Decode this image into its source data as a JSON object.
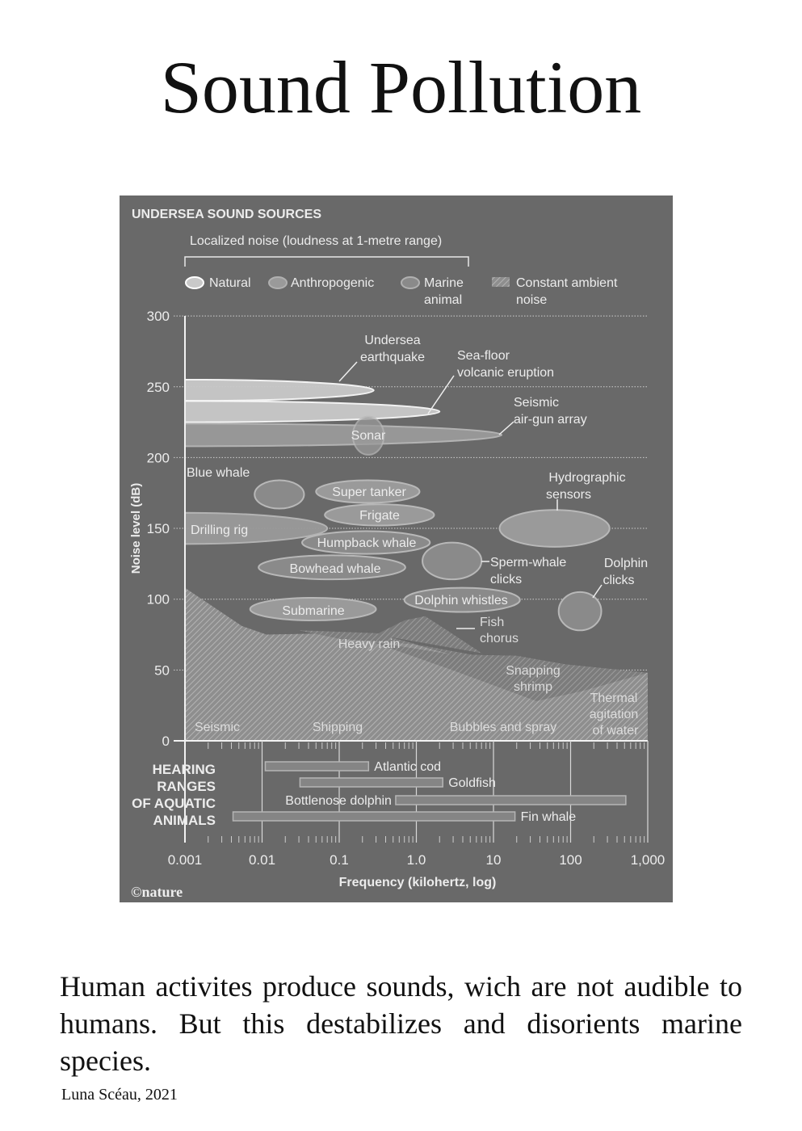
{
  "title": "Sound Pollution",
  "caption": "Human activites produce sounds, wich are not audible to humans. But this destabilizes and disorients marine species.",
  "credit": "Luna Scéau, 2021",
  "colors": {
    "panel": "#696969",
    "natural": "#c9c9c9",
    "anthropogenic": "#9a9a9a",
    "marine": "#8a8a8a",
    "text": "#ececec"
  },
  "chart_data": {
    "type": "area",
    "title": "UNDERSEA SOUND SOURCES",
    "subtitle": "Localized noise (loudness at 1-metre range)",
    "ylabel": "Noise level (dB)",
    "xlabel": "Frequency (kilohertz, log)",
    "xscale": "log",
    "xlim": [
      0.001,
      1000
    ],
    "ylim": [
      0,
      300
    ],
    "yticks": [
      "0",
      "50",
      "100",
      "150",
      "200",
      "250",
      "300"
    ],
    "xticks": [
      "0.001",
      "0.01",
      "0.1",
      "1.0",
      "10",
      "100",
      "1,000"
    ],
    "grid": "horizontal dotted",
    "legend": [
      {
        "label": "Natural",
        "kind": "natural"
      },
      {
        "label": "Anthropogenic",
        "kind": "anthropogenic"
      },
      {
        "label": "Marine animal",
        "kind": "marine"
      },
      {
        "label": "Constant ambient noise",
        "kind": "ambient"
      }
    ],
    "legend_lines": {
      "marine": [
        "Marine",
        "animal"
      ],
      "ambient": [
        "Constant ambient",
        "noise"
      ]
    },
    "sources": [
      {
        "label": [
          "Undersea",
          "earthquake"
        ],
        "kind": "natural",
        "freq": [
          0.001,
          0.28
        ],
        "db": [
          240,
          255
        ]
      },
      {
        "label": [
          "Sea-floor",
          "volcanic eruption"
        ],
        "kind": "natural",
        "freq": [
          0.001,
          2
        ],
        "db": [
          225,
          240
        ]
      },
      {
        "label": [
          "Seismic",
          "air-gun array"
        ],
        "kind": "anthropogenic",
        "freq": [
          0.001,
          13
        ],
        "db": [
          208,
          224
        ]
      },
      {
        "label": [
          "Sonar"
        ],
        "kind": "anthropogenic",
        "freq": [
          0.15,
          0.38
        ],
        "db": [
          202,
          229
        ]
      },
      {
        "label": [
          "Blue whale"
        ],
        "kind": "marine",
        "freq": [
          0.008,
          0.035
        ],
        "db": [
          164,
          184
        ]
      },
      {
        "label": [
          "Super tanker"
        ],
        "kind": "anthropogenic",
        "freq": [
          0.05,
          1.1
        ],
        "db": [
          168,
          184
        ]
      },
      {
        "label": [
          "Frigate"
        ],
        "kind": "anthropogenic",
        "freq": [
          0.065,
          1.7
        ],
        "db": [
          152,
          167
        ]
      },
      {
        "label": [
          "Drilling rig"
        ],
        "kind": "anthropogenic",
        "freq": [
          0.001,
          0.07
        ],
        "db": [
          139,
          161
        ]
      },
      {
        "label": [
          "Humpback whale"
        ],
        "kind": "marine",
        "freq": [
          0.033,
          1.5
        ],
        "db": [
          132,
          148
        ]
      },
      {
        "label": [
          "Hydrographic",
          "sensors"
        ],
        "kind": "anthropogenic",
        "freq": [
          12,
          320
        ],
        "db": [
          137,
          163
        ]
      },
      {
        "label": [
          "Bowhead whale"
        ],
        "kind": "marine",
        "freq": [
          0.009,
          0.72
        ],
        "db": [
          114,
          131
        ]
      },
      {
        "label": [
          "Sperm-whale",
          "clicks"
        ],
        "kind": "marine",
        "freq": [
          1.2,
          7
        ],
        "db": [
          114,
          140
        ]
      },
      {
        "label": [
          "Dolphin",
          "clicks"
        ],
        "kind": "marine",
        "freq": [
          70,
          250
        ],
        "db": [
          78,
          105
        ]
      },
      {
        "label": [
          "Dolphin whistles"
        ],
        "kind": "marine",
        "freq": [
          0.7,
          22
        ],
        "db": [
          91,
          108
        ]
      },
      {
        "label": [
          "Submarine"
        ],
        "kind": "anthropogenic",
        "freq": [
          0.007,
          0.3
        ],
        "db": [
          85,
          101
        ]
      }
    ],
    "ambient": [
      {
        "label": [
          "Seismic"
        ],
        "kind": "ambient"
      },
      {
        "label": [
          "Shipping"
        ],
        "kind": "ambient"
      },
      {
        "label": [
          "Bubbles and spray"
        ],
        "kind": "ambient"
      },
      {
        "label": [
          "Thermal",
          "agitation",
          "of water"
        ],
        "kind": "ambient"
      },
      {
        "label": [
          "Heavy rain"
        ],
        "kind": "ambient",
        "points": [
          [
            0.03,
            78
          ],
          [
            0.3,
            76
          ],
          [
            3,
            61
          ],
          [
            10,
            58
          ],
          [
            1,
            68
          ],
          [
            0.1,
            72
          ]
        ]
      },
      {
        "label": [
          "Fish",
          "chorus"
        ],
        "kind": "ambient",
        "points": [
          [
            0.3,
            75
          ],
          [
            0.7,
            85
          ],
          [
            1.3,
            88
          ],
          [
            2.5,
            78
          ],
          [
            7,
            62
          ],
          [
            1,
            70
          ]
        ]
      },
      {
        "label": [
          "Snapping",
          "shrimp"
        ],
        "kind": "ambient",
        "points": [
          [
            0.26,
            70
          ],
          [
            2.9,
            61
          ],
          [
            20,
            60
          ],
          [
            85,
            54
          ],
          [
            1000,
            48
          ],
          [
            140,
            35
          ],
          [
            36,
            28
          ],
          [
            2.9,
            50
          ]
        ]
      }
    ],
    "ambient_envelope": [
      [
        0.001,
        108
      ],
      [
        0.0055,
        81
      ],
      [
        0.0114,
        75
      ],
      [
        0.1,
        76
      ],
      [
        0.33,
        75
      ],
      [
        2.9,
        61
      ],
      [
        20,
        60
      ],
      [
        85,
        54
      ],
      [
        1000,
        48
      ]
    ],
    "hearing_title": [
      "HEARING",
      "RANGES",
      "OF AQUATIC",
      "ANIMALS"
    ],
    "hearing_ranges": [
      {
        "label": "Atlantic cod",
        "freq": [
          0.011,
          0.24
        ]
      },
      {
        "label": "Goldfish",
        "freq": [
          0.031,
          2.2
        ]
      },
      {
        "label": "Bottlenose dolphin",
        "freq": [
          0.54,
          520
        ]
      },
      {
        "label": "Fin whale",
        "freq": [
          0.0042,
          19
        ]
      }
    ],
    "source_credit": "©nature"
  }
}
